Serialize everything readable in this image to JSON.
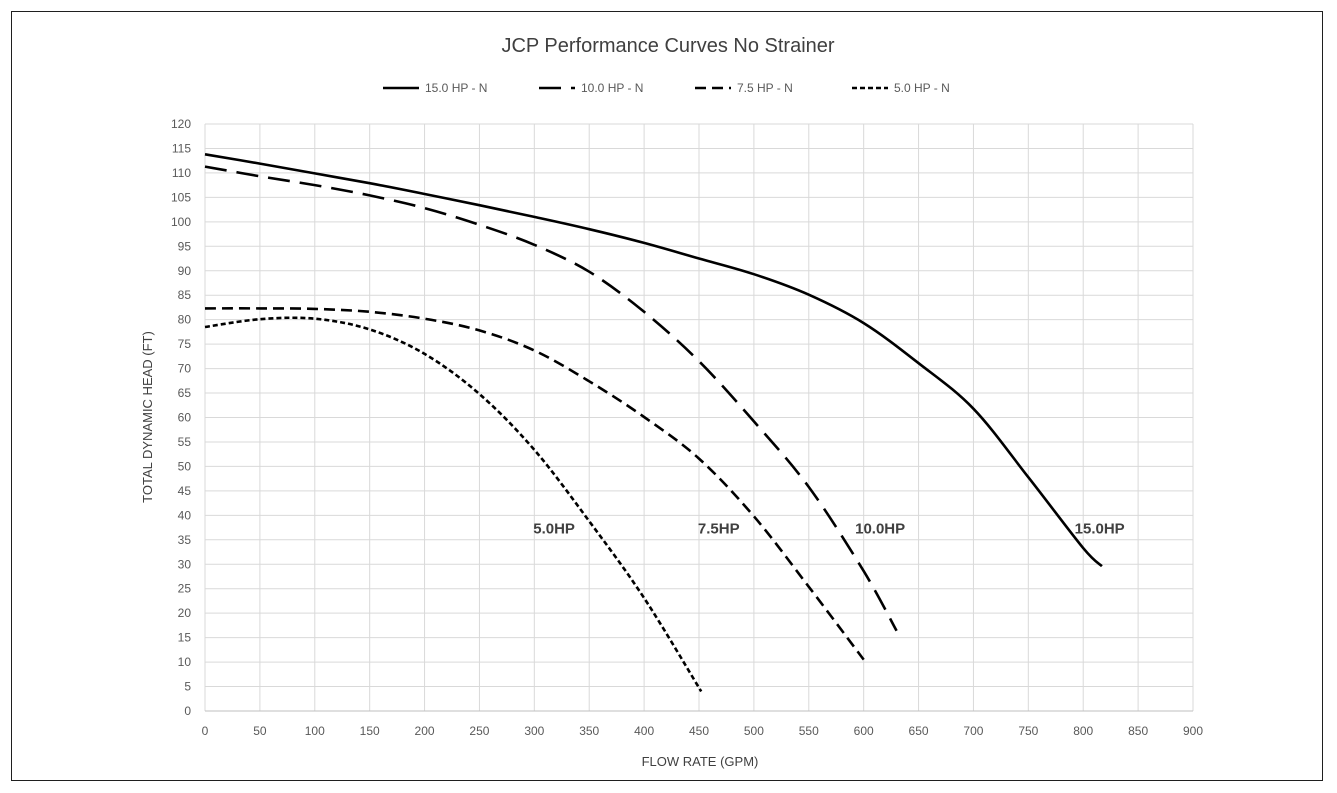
{
  "chart_data": {
    "type": "line",
    "title": "JCP Performance Curves No Strainer",
    "xlabel": "FLOW RATE  (GPM)",
    "ylabel": "TOTAL DYNAMIC HEAD (FT)",
    "xlim": [
      0,
      900
    ],
    "ylim": [
      0,
      120
    ],
    "x_ticks": [
      0,
      50,
      100,
      150,
      200,
      250,
      300,
      350,
      400,
      450,
      500,
      550,
      600,
      650,
      700,
      750,
      800,
      850,
      900
    ],
    "y_ticks": [
      0,
      5,
      10,
      15,
      20,
      25,
      30,
      35,
      40,
      45,
      50,
      55,
      60,
      65,
      70,
      75,
      80,
      85,
      90,
      95,
      100,
      105,
      110,
      115,
      120
    ],
    "grid": true,
    "legend_position": "top",
    "series": [
      {
        "name": "15.0 HP - N",
        "dash": "solid",
        "label": "15.0HP",
        "label_at": [
          815,
          37.5
        ],
        "points": [
          [
            0,
            113.8
          ],
          [
            50,
            111.9
          ],
          [
            100,
            109.9
          ],
          [
            150,
            107.9
          ],
          [
            200,
            105.7
          ],
          [
            250,
            103.4
          ],
          [
            300,
            101
          ],
          [
            350,
            98.5
          ],
          [
            400,
            95.7
          ],
          [
            450,
            92.5
          ],
          [
            500,
            89.3
          ],
          [
            550,
            85.1
          ],
          [
            600,
            79.3
          ],
          [
            650,
            71.1
          ],
          [
            700,
            61.8
          ],
          [
            750,
            47.8
          ],
          [
            800,
            33.3
          ],
          [
            817,
            29.6
          ]
        ]
      },
      {
        "name": "10.0 HP - N",
        "dash": "long",
        "label": "10.0HP",
        "label_at": [
          615,
          37.5
        ],
        "points": [
          [
            0,
            111.3
          ],
          [
            50,
            109.3
          ],
          [
            100,
            107.5
          ],
          [
            150,
            105.4
          ],
          [
            200,
            102.8
          ],
          [
            250,
            99.4
          ],
          [
            300,
            95.3
          ],
          [
            350,
            89.8
          ],
          [
            400,
            81.6
          ],
          [
            450,
            71.5
          ],
          [
            500,
            59.2
          ],
          [
            550,
            45.8
          ],
          [
            600,
            28.6
          ],
          [
            630,
            16.4
          ]
        ]
      },
      {
        "name": "7.5 HP - N",
        "dash": "medium",
        "label": "7.5HP",
        "label_at": [
          468,
          37.5
        ],
        "points": [
          [
            0,
            82.3
          ],
          [
            50,
            82.3
          ],
          [
            100,
            82.2
          ],
          [
            150,
            81.6
          ],
          [
            200,
            80.2
          ],
          [
            250,
            77.8
          ],
          [
            300,
            73.7
          ],
          [
            350,
            67.4
          ],
          [
            400,
            60.1
          ],
          [
            450,
            51.6
          ],
          [
            500,
            39.8
          ],
          [
            550,
            25.4
          ],
          [
            600,
            10.5
          ]
        ]
      },
      {
        "name": "5.0 HP - N",
        "dash": "short",
        "label": "5.0HP",
        "label_at": [
          318,
          37.5
        ],
        "points": [
          [
            0,
            78.5
          ],
          [
            50,
            80.1
          ],
          [
            100,
            80.2
          ],
          [
            150,
            78
          ],
          [
            200,
            73
          ],
          [
            250,
            64.8
          ],
          [
            300,
            53.4
          ],
          [
            350,
            38.8
          ],
          [
            400,
            23.1
          ],
          [
            452,
            4
          ]
        ]
      }
    ]
  }
}
